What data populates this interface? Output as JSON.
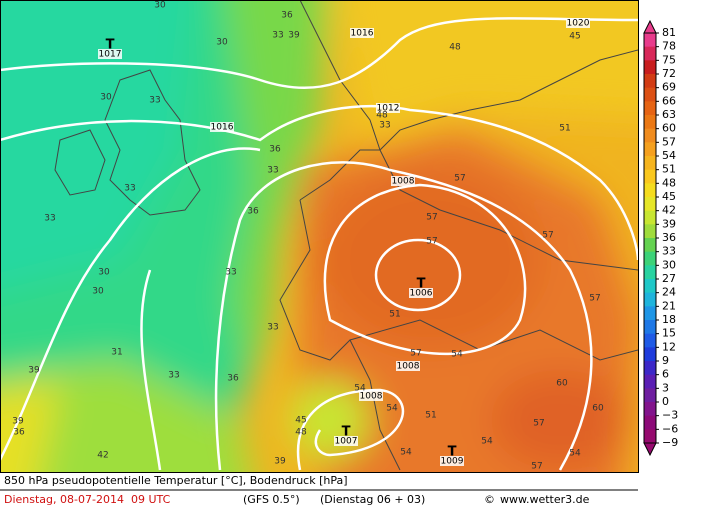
{
  "map": {
    "isobar_labels": [
      "1016",
      "1016",
      "1012",
      "1008",
      "1008",
      "1008",
      "1020"
    ],
    "lows": [
      {
        "symbol": "T",
        "pressure": "1017"
      },
      {
        "symbol": "T",
        "pressure": "1006"
      },
      {
        "symbol": "T",
        "pressure": "1007"
      },
      {
        "symbol": "T",
        "pressure": "1009"
      }
    ],
    "contour_labels": [
      "30",
      "36",
      "33",
      "39",
      "30",
      "48",
      "45",
      "30",
      "33",
      "48",
      "33",
      "51",
      "36",
      "33",
      "57",
      "33",
      "33",
      "36",
      "57",
      "57",
      "57",
      "30",
      "33",
      "51",
      "57",
      "30",
      "33",
      "57",
      "54",
      "31",
      "39",
      "33",
      "36",
      "54",
      "54",
      "51",
      "60",
      "60",
      "57",
      "39",
      "45",
      "48",
      "36",
      "42",
      "39",
      "54",
      "54",
      "54",
      "57"
    ]
  },
  "colorbar": {
    "ticks": [
      "81",
      "78",
      "75",
      "72",
      "69",
      "66",
      "63",
      "60",
      "57",
      "54",
      "51",
      "48",
      "45",
      "42",
      "39",
      "36",
      "33",
      "30",
      "27",
      "24",
      "21",
      "18",
      "15",
      "12",
      "9",
      "6",
      "3",
      "0",
      "−3",
      "−6",
      "−9"
    ],
    "colors": [
      "#e83c8c",
      "#d8285a",
      "#c81e1e",
      "#d23c14",
      "#dc5014",
      "#e66414",
      "#eb7814",
      "#f08c1e",
      "#f5a01e",
      "#f5b41e",
      "#fac81e",
      "#f5dc1e",
      "#e6e628",
      "#c8e632",
      "#a0dc3c",
      "#64d250",
      "#3cd278",
      "#28d2a0",
      "#1ec8c8",
      "#1eb4dc",
      "#1e96e6",
      "#1e78e6",
      "#1e5ae6",
      "#1e3cdc",
      "#3c28c8",
      "#5a1eb4",
      "#6e1ea0",
      "#82148c",
      "#8c0a78",
      "#960a6e"
    ]
  },
  "footer": {
    "title": "850 hPa pseudopotentielle Temperatur [°C], Bodendruck [hPa]",
    "date": "Dienstag, 08-07-2014  09 UTC",
    "model": "(GFS 0.5°)",
    "run": "(Dienstag 06 + 03)",
    "copyright": "©",
    "site": "www.wetter3.de"
  }
}
